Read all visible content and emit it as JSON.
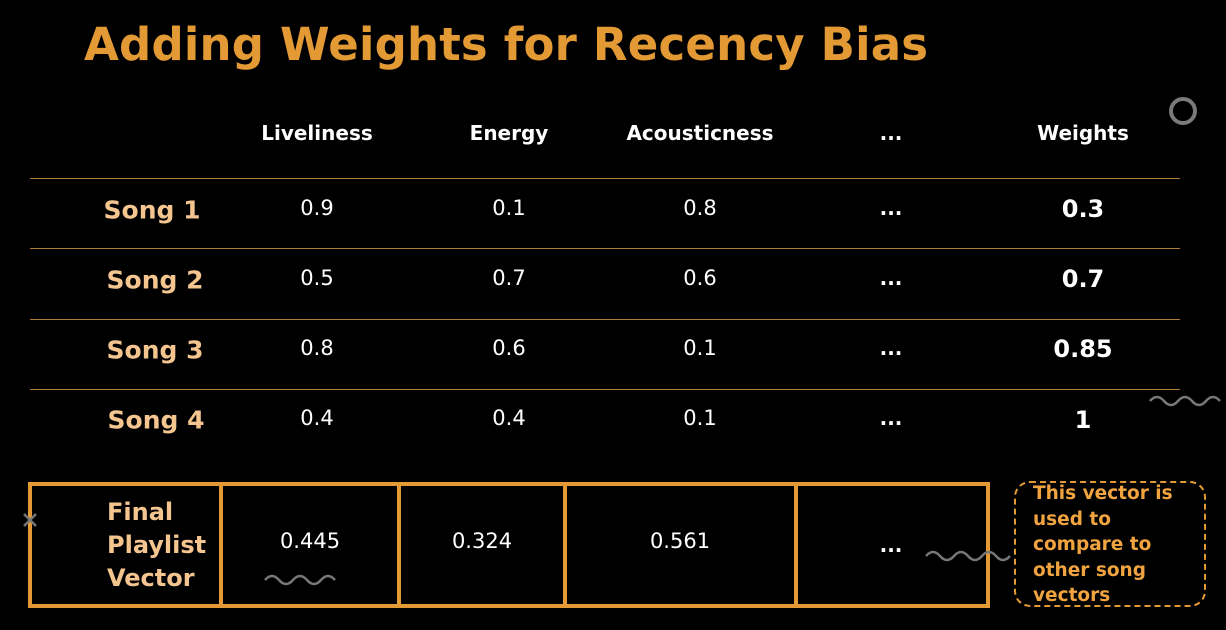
{
  "title": "Adding Weights for Recency Bias",
  "headers": [
    "Liveliness",
    "Energy",
    "Acousticness",
    "...",
    "Weights"
  ],
  "rows": [
    {
      "song": "Song 1",
      "values": [
        "0.9",
        "0.1",
        "0.8",
        "..."
      ],
      "weight": "0.3"
    },
    {
      "song": "Song 2",
      "values": [
        "0.5",
        "0.7",
        "0.6",
        "..."
      ],
      "weight": "0.7"
    },
    {
      "song": "Song 3",
      "values": [
        "0.8",
        "0.6",
        "0.1",
        "..."
      ],
      "weight": "0.85"
    },
    {
      "song": "Song 4",
      "values": [
        "0.4",
        "0.4",
        "0.1",
        "..."
      ],
      "weight": "1"
    }
  ],
  "final": {
    "label_lines": [
      "Final",
      "Playlist",
      "Vector"
    ],
    "values": [
      "0.445",
      "0.324",
      "0.561",
      "..."
    ]
  },
  "callout": "This vector is used to compare to other song vectors",
  "colors": {
    "accent": "#e39a35",
    "song_label": "#f5c590",
    "background": "#000000"
  }
}
